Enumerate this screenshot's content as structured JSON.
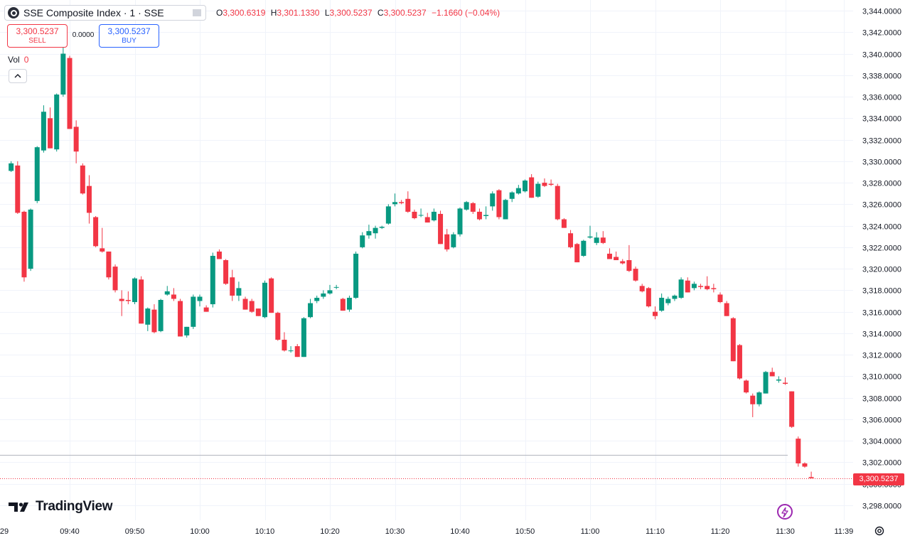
{
  "legend": {
    "title": "SSE Composite Index · 1 · SSE",
    "open_label": "O",
    "open": "3,300.6319",
    "high_label": "H",
    "high": "3,301.1330",
    "low_label": "L",
    "low": "3,300.5237",
    "close_label": "C",
    "close": "3,300.5237",
    "change": "−1.1660 (−0.04%)"
  },
  "trade": {
    "sell_price": "3,300.5237",
    "sell_label": "SELL",
    "spread": "0.0000",
    "buy_price": "3,300.5237",
    "buy_label": "BUY"
  },
  "volume": {
    "label": "Vol",
    "value": "0"
  },
  "brand": {
    "name": "TradingView"
  },
  "last_price_label": "3,300.5237",
  "colors": {
    "up": "#089981",
    "down": "#f23645",
    "grid": "#f0f3fa",
    "bolt": "#9c27b0"
  },
  "icons": [
    "tradingview-logo-icon",
    "eye-icon",
    "chevron-up-icon",
    "lightning-icon",
    "gear-icon"
  ],
  "chart_data": {
    "type": "candlestick",
    "symbol": "SSE Composite Index",
    "interval": "1",
    "y_axis": {
      "range": [
        3297,
        3344.5
      ],
      "ticks": [
        3298,
        3300,
        3302,
        3304,
        3306,
        3308,
        3310,
        3312,
        3314,
        3316,
        3318,
        3320,
        3322,
        3324,
        3326,
        3328,
        3330,
        3332,
        3334,
        3336,
        3338,
        3340,
        3342,
        3344
      ],
      "tick_labels": [
        "3,298.0000",
        "3,300.0000",
        "3,302.0000",
        "3,304.0000",
        "3,306.0000",
        "3,308.0000",
        "3,310.0000",
        "3,312.0000",
        "3,314.0000",
        "3,316.0000",
        "3,318.0000",
        "3,320.0000",
        "3,322.0000",
        "3,324.0000",
        "3,326.0000",
        "3,328.0000",
        "3,330.0000",
        "3,332.0000",
        "3,334.0000",
        "3,336.0000",
        "3,338.0000",
        "3,340.0000",
        "3,342.0000",
        "3,344.0000"
      ]
    },
    "x_axis": {
      "ticks": [
        "09:40",
        "09:50",
        "10:00",
        "10:10",
        "10:20",
        "10:30",
        "10:40",
        "10:50",
        "11:00",
        "11:10",
        "11:20",
        "11:30",
        "11:39"
      ],
      "left_edge_label": "29"
    },
    "reference_line": 3302.7,
    "last_price": 3300.5237,
    "grid": true,
    "candles": [
      {
        "t": "09:31",
        "o": 3329.1,
        "h": 3330.0,
        "l": 3329.0,
        "c": 3329.8
      },
      {
        "t": "09:32",
        "o": 3329.6,
        "h": 3330.0,
        "l": 3325.1,
        "c": 3325.2
      },
      {
        "t": "09:33",
        "o": 3325.3,
        "h": 3325.4,
        "l": 3318.8,
        "c": 3319.2
      },
      {
        "t": "09:34",
        "o": 3320.0,
        "h": 3325.6,
        "l": 3319.8,
        "c": 3325.5
      },
      {
        "t": "09:35",
        "o": 3326.3,
        "h": 3331.4,
        "l": 3326.1,
        "c": 3331.3
      },
      {
        "t": "09:36",
        "o": 3331.0,
        "h": 3335.2,
        "l": 3330.8,
        "c": 3334.6
      },
      {
        "t": "09:37",
        "o": 3334.0,
        "h": 3335.0,
        "l": 3331.2,
        "c": 3331.2
      },
      {
        "t": "09:38",
        "o": 3331.1,
        "h": 3336.3,
        "l": 3330.9,
        "c": 3336.2
      },
      {
        "t": "09:39",
        "o": 3336.2,
        "h": 3340.8,
        "l": 3336.0,
        "c": 3340.0
      },
      {
        "t": "09:40",
        "o": 3339.6,
        "h": 3339.8,
        "l": 3333.0,
        "c": 3333.0
      },
      {
        "t": "09:41",
        "o": 3333.2,
        "h": 3333.8,
        "l": 3329.8,
        "c": 3330.9
      },
      {
        "t": "09:42",
        "o": 3329.6,
        "h": 3329.8,
        "l": 3326.9,
        "c": 3327.0
      },
      {
        "t": "09:43",
        "o": 3327.7,
        "h": 3328.7,
        "l": 3324.2,
        "c": 3325.2
      },
      {
        "t": "09:44",
        "o": 3324.8,
        "h": 3324.9,
        "l": 3322.0,
        "c": 3322.1
      },
      {
        "t": "09:45",
        "o": 3321.9,
        "h": 3323.8,
        "l": 3321.5,
        "c": 3321.6
      },
      {
        "t": "09:46",
        "o": 3321.6,
        "h": 3321.6,
        "l": 3319.0,
        "c": 3319.2
      },
      {
        "t": "09:47",
        "o": 3320.2,
        "h": 3320.4,
        "l": 3317.8,
        "c": 3318.0
      },
      {
        "t": "09:48",
        "o": 3317.2,
        "h": 3318.0,
        "l": 3315.6,
        "c": 3317.0
      },
      {
        "t": "09:49",
        "o": 3317.1,
        "h": 3317.9,
        "l": 3316.7,
        "c": 3317.0
      },
      {
        "t": "09:50",
        "o": 3316.9,
        "h": 3319.2,
        "l": 3316.7,
        "c": 3319.1
      },
      {
        "t": "09:51",
        "o": 3319.0,
        "h": 3319.3,
        "l": 3314.9,
        "c": 3314.9
      },
      {
        "t": "09:52",
        "o": 3314.8,
        "h": 3316.4,
        "l": 3314.2,
        "c": 3316.3
      },
      {
        "t": "09:53",
        "o": 3316.2,
        "h": 3316.7,
        "l": 3314.0,
        "c": 3314.1
      },
      {
        "t": "09:54",
        "o": 3314.2,
        "h": 3317.2,
        "l": 3314.1,
        "c": 3317.1
      },
      {
        "t": "09:55",
        "o": 3317.6,
        "h": 3318.4,
        "l": 3317.5,
        "c": 3317.9
      },
      {
        "t": "09:56",
        "o": 3317.6,
        "h": 3318.2,
        "l": 3317.0,
        "c": 3317.2
      },
      {
        "t": "09:57",
        "o": 3317.0,
        "h": 3317.2,
        "l": 3313.7,
        "c": 3313.7
      },
      {
        "t": "09:58",
        "o": 3313.8,
        "h": 3314.6,
        "l": 3313.6,
        "c": 3314.6
      },
      {
        "t": "09:59",
        "o": 3314.6,
        "h": 3317.6,
        "l": 3314.4,
        "c": 3317.4
      },
      {
        "t": "10:00",
        "o": 3317.0,
        "h": 3317.6,
        "l": 3316.5,
        "c": 3317.4
      },
      {
        "t": "10:01",
        "o": 3316.4,
        "h": 3316.6,
        "l": 3316.0,
        "c": 3316.0
      },
      {
        "t": "10:02",
        "o": 3316.7,
        "h": 3321.5,
        "l": 3316.4,
        "c": 3321.2
      },
      {
        "t": "10:03",
        "o": 3321.6,
        "h": 3321.8,
        "l": 3320.9,
        "c": 3320.9
      },
      {
        "t": "10:04",
        "o": 3320.8,
        "h": 3320.9,
        "l": 3318.5,
        "c": 3318.6
      },
      {
        "t": "10:05",
        "o": 3319.2,
        "h": 3319.9,
        "l": 3317.0,
        "c": 3317.5
      },
      {
        "t": "10:06",
        "o": 3317.5,
        "h": 3318.8,
        "l": 3317.0,
        "c": 3318.2
      },
      {
        "t": "10:07",
        "o": 3317.2,
        "h": 3317.4,
        "l": 3316.2,
        "c": 3316.2
      },
      {
        "t": "10:08",
        "o": 3317.0,
        "h": 3317.2,
        "l": 3315.9,
        "c": 3316.0
      },
      {
        "t": "10:09",
        "o": 3316.3,
        "h": 3316.3,
        "l": 3315.6,
        "c": 3315.6
      },
      {
        "t": "10:10",
        "o": 3315.5,
        "h": 3318.9,
        "l": 3315.4,
        "c": 3318.7
      },
      {
        "t": "10:11",
        "o": 3319.1,
        "h": 3319.2,
        "l": 3315.9,
        "c": 3315.9
      },
      {
        "t": "10:12",
        "o": 3315.9,
        "h": 3316.0,
        "l": 3313.3,
        "c": 3313.4
      },
      {
        "t": "10:13",
        "o": 3313.4,
        "h": 3314.1,
        "l": 3312.3,
        "c": 3312.4
      },
      {
        "t": "10:14",
        "o": 3312.4,
        "h": 3312.8,
        "l": 3312.2,
        "c": 3312.4
      },
      {
        "t": "10:15",
        "o": 3312.8,
        "h": 3313.0,
        "l": 3311.8,
        "c": 3311.8
      },
      {
        "t": "10:16",
        "o": 3311.8,
        "h": 3315.5,
        "l": 3311.8,
        "c": 3315.4
      },
      {
        "t": "10:17",
        "o": 3315.5,
        "h": 3317.2,
        "l": 3315.4,
        "c": 3316.8
      },
      {
        "t": "10:18",
        "o": 3317.0,
        "h": 3317.5,
        "l": 3316.8,
        "c": 3317.3
      },
      {
        "t": "10:19",
        "o": 3317.4,
        "h": 3318.0,
        "l": 3317.2,
        "c": 3317.7
      },
      {
        "t": "10:20",
        "o": 3317.7,
        "h": 3318.5,
        "l": 3317.6,
        "c": 3318.0
      },
      {
        "t": "10:21",
        "o": 3318.3,
        "h": 3318.5,
        "l": 3318.1,
        "c": 3318.3
      },
      {
        "t": "10:22",
        "o": 3317.2,
        "h": 3317.3,
        "l": 3316.1,
        "c": 3316.1
      },
      {
        "t": "10:23",
        "o": 3316.2,
        "h": 3317.5,
        "l": 3316.0,
        "c": 3317.3
      },
      {
        "t": "10:24",
        "o": 3317.3,
        "h": 3321.6,
        "l": 3317.2,
        "c": 3321.4
      },
      {
        "t": "10:25",
        "o": 3322.0,
        "h": 3323.4,
        "l": 3321.9,
        "c": 3323.1
      },
      {
        "t": "10:26",
        "o": 3323.1,
        "h": 3324.1,
        "l": 3322.8,
        "c": 3323.5
      },
      {
        "t": "10:27",
        "o": 3323.3,
        "h": 3324.0,
        "l": 3322.8,
        "c": 3323.8
      },
      {
        "t": "10:28",
        "o": 3323.8,
        "h": 3324.0,
        "l": 3323.7,
        "c": 3323.9
      },
      {
        "t": "10:29",
        "o": 3324.2,
        "h": 3326.0,
        "l": 3324.1,
        "c": 3325.8
      },
      {
        "t": "10:30",
        "o": 3326.0,
        "h": 3327.0,
        "l": 3325.8,
        "c": 3326.2
      },
      {
        "t": "10:31",
        "o": 3326.2,
        "h": 3326.4,
        "l": 3326.0,
        "c": 3326.1
      },
      {
        "t": "10:32",
        "o": 3326.5,
        "h": 3327.2,
        "l": 3325.2,
        "c": 3325.3
      },
      {
        "t": "10:33",
        "o": 3325.3,
        "h": 3325.5,
        "l": 3324.6,
        "c": 3324.7
      },
      {
        "t": "10:34",
        "o": 3325.0,
        "h": 3325.6,
        "l": 3324.8,
        "c": 3325.0
      },
      {
        "t": "10:35",
        "o": 3324.8,
        "h": 3325.2,
        "l": 3324.3,
        "c": 3324.3
      },
      {
        "t": "10:36",
        "o": 3324.5,
        "h": 3325.6,
        "l": 3324.4,
        "c": 3325.3
      },
      {
        "t": "10:37",
        "o": 3325.1,
        "h": 3325.4,
        "l": 3322.3,
        "c": 3322.3
      },
      {
        "t": "10:38",
        "o": 3323.2,
        "h": 3323.7,
        "l": 3321.6,
        "c": 3321.8
      },
      {
        "t": "10:39",
        "o": 3322.0,
        "h": 3323.4,
        "l": 3321.9,
        "c": 3323.2
      },
      {
        "t": "10:40",
        "o": 3323.2,
        "h": 3325.7,
        "l": 3323.0,
        "c": 3325.6
      },
      {
        "t": "10:41",
        "o": 3325.5,
        "h": 3326.3,
        "l": 3325.4,
        "c": 3326.2
      },
      {
        "t": "10:42",
        "o": 3326.1,
        "h": 3326.2,
        "l": 3325.1,
        "c": 3325.3
      },
      {
        "t": "10:43",
        "o": 3325.3,
        "h": 3325.6,
        "l": 3324.5,
        "c": 3324.6
      },
      {
        "t": "10:44",
        "o": 3324.9,
        "h": 3325.8,
        "l": 3324.6,
        "c": 3325.0
      },
      {
        "t": "10:45",
        "o": 3325.8,
        "h": 3327.2,
        "l": 3325.4,
        "c": 3327.0
      },
      {
        "t": "10:46",
        "o": 3327.3,
        "h": 3327.4,
        "l": 3324.6,
        "c": 3324.8
      },
      {
        "t": "10:47",
        "o": 3324.6,
        "h": 3326.5,
        "l": 3324.6,
        "c": 3326.4
      },
      {
        "t": "10:48",
        "o": 3326.5,
        "h": 3327.2,
        "l": 3326.2,
        "c": 3327.1
      },
      {
        "t": "10:49",
        "o": 3327.0,
        "h": 3327.8,
        "l": 3326.9,
        "c": 3327.5
      },
      {
        "t": "10:50",
        "o": 3327.2,
        "h": 3328.3,
        "l": 3327.1,
        "c": 3328.2
      },
      {
        "t": "10:51",
        "o": 3328.5,
        "h": 3328.8,
        "l": 3326.6,
        "c": 3326.6
      },
      {
        "t": "10:52",
        "o": 3326.7,
        "h": 3328.1,
        "l": 3326.6,
        "c": 3327.9
      },
      {
        "t": "10:53",
        "o": 3328.0,
        "h": 3328.4,
        "l": 3327.6,
        "c": 3327.7
      },
      {
        "t": "10:54",
        "o": 3327.9,
        "h": 3328.3,
        "l": 3327.7,
        "c": 3327.8
      },
      {
        "t": "10:55",
        "o": 3327.7,
        "h": 3327.9,
        "l": 3324.5,
        "c": 3324.6
      },
      {
        "t": "10:56",
        "o": 3324.6,
        "h": 3324.7,
        "l": 3323.8,
        "c": 3323.8
      },
      {
        "t": "10:57",
        "o": 3323.3,
        "h": 3323.6,
        "l": 3321.9,
        "c": 3322.0
      },
      {
        "t": "10:58",
        "o": 3322.3,
        "h": 3322.4,
        "l": 3320.6,
        "c": 3320.6
      },
      {
        "t": "10:59",
        "o": 3321.2,
        "h": 3322.7,
        "l": 3321.1,
        "c": 3322.6
      },
      {
        "t": "11:00",
        "o": 3322.9,
        "h": 3324.0,
        "l": 3322.8,
        "c": 3323.0
      },
      {
        "t": "11:01",
        "o": 3322.4,
        "h": 3323.4,
        "l": 3322.2,
        "c": 3322.9
      },
      {
        "t": "11:02",
        "o": 3322.9,
        "h": 3323.5,
        "l": 3322.3,
        "c": 3322.4
      },
      {
        "t": "11:03",
        "o": 3321.4,
        "h": 3321.9,
        "l": 3320.9,
        "c": 3320.9
      },
      {
        "t": "11:04",
        "o": 3321.1,
        "h": 3321.6,
        "l": 3320.8,
        "c": 3320.8
      },
      {
        "t": "11:05",
        "o": 3320.7,
        "h": 3320.9,
        "l": 3320.4,
        "c": 3320.5
      },
      {
        "t": "11:06",
        "o": 3320.8,
        "h": 3322.2,
        "l": 3319.7,
        "c": 3319.8
      },
      {
        "t": "11:07",
        "o": 3320.0,
        "h": 3320.2,
        "l": 3318.8,
        "c": 3318.9
      },
      {
        "t": "11:08",
        "o": 3318.4,
        "h": 3318.6,
        "l": 3317.8,
        "c": 3317.9
      },
      {
        "t": "11:09",
        "o": 3318.2,
        "h": 3318.3,
        "l": 3316.4,
        "c": 3316.5
      },
      {
        "t": "11:10",
        "o": 3316.0,
        "h": 3316.5,
        "l": 3315.3,
        "c": 3315.6
      },
      {
        "t": "11:11",
        "o": 3316.1,
        "h": 3317.7,
        "l": 3316.0,
        "c": 3317.3
      },
      {
        "t": "11:12",
        "o": 3316.8,
        "h": 3317.4,
        "l": 3316.6,
        "c": 3317.2
      },
      {
        "t": "11:13",
        "o": 3317.2,
        "h": 3317.6,
        "l": 3317.0,
        "c": 3317.5
      },
      {
        "t": "11:14",
        "o": 3317.3,
        "h": 3319.2,
        "l": 3317.2,
        "c": 3319.0
      },
      {
        "t": "11:15",
        "o": 3318.9,
        "h": 3319.2,
        "l": 3317.8,
        "c": 3317.8
      },
      {
        "t": "11:16",
        "o": 3318.2,
        "h": 3318.8,
        "l": 3318.0,
        "c": 3318.6
      },
      {
        "t": "11:17",
        "o": 3318.4,
        "h": 3318.6,
        "l": 3318.1,
        "c": 3318.3
      },
      {
        "t": "11:18",
        "o": 3318.4,
        "h": 3319.3,
        "l": 3318.0,
        "c": 3318.1
      },
      {
        "t": "11:19",
        "o": 3318.2,
        "h": 3318.6,
        "l": 3317.8,
        "c": 3318.1
      },
      {
        "t": "11:20",
        "o": 3317.6,
        "h": 3317.8,
        "l": 3316.8,
        "c": 3316.9
      },
      {
        "t": "11:21",
        "o": 3316.8,
        "h": 3317.0,
        "l": 3315.6,
        "c": 3315.6
      },
      {
        "t": "11:22",
        "o": 3315.4,
        "h": 3315.5,
        "l": 3311.4,
        "c": 3311.4
      },
      {
        "t": "11:23",
        "o": 3312.9,
        "h": 3313.0,
        "l": 3309.7,
        "c": 3309.8
      },
      {
        "t": "11:24",
        "o": 3309.6,
        "h": 3309.7,
        "l": 3308.4,
        "c": 3308.5
      },
      {
        "t": "11:25",
        "o": 3308.2,
        "h": 3308.4,
        "l": 3306.2,
        "c": 3307.4
      },
      {
        "t": "11:26",
        "o": 3307.4,
        "h": 3308.6,
        "l": 3307.2,
        "c": 3308.5
      },
      {
        "t": "11:27",
        "o": 3308.4,
        "h": 3310.5,
        "l": 3308.4,
        "c": 3310.4
      },
      {
        "t": "11:28",
        "o": 3310.4,
        "h": 3310.8,
        "l": 3310.0,
        "c": 3310.0
      },
      {
        "t": "11:29",
        "o": 3309.6,
        "h": 3310.0,
        "l": 3309.4,
        "c": 3309.7
      },
      {
        "t": "11:30",
        "o": 3309.4,
        "h": 3309.9,
        "l": 3309.2,
        "c": 3309.3
      },
      {
        "t": "11:31",
        "o": 3308.6,
        "h": 3308.6,
        "l": 3305.2,
        "c": 3305.3
      },
      {
        "t": "11:32",
        "o": 3304.2,
        "h": 3304.4,
        "l": 3301.6,
        "c": 3301.9
      },
      {
        "t": "11:33",
        "o": 3301.9,
        "h": 3302.0,
        "l": 3301.5,
        "c": 3301.6
      },
      {
        "t": "11:34",
        "o": 3300.6319,
        "h": 3301.133,
        "l": 3300.5237,
        "c": 3300.5237
      }
    ]
  }
}
